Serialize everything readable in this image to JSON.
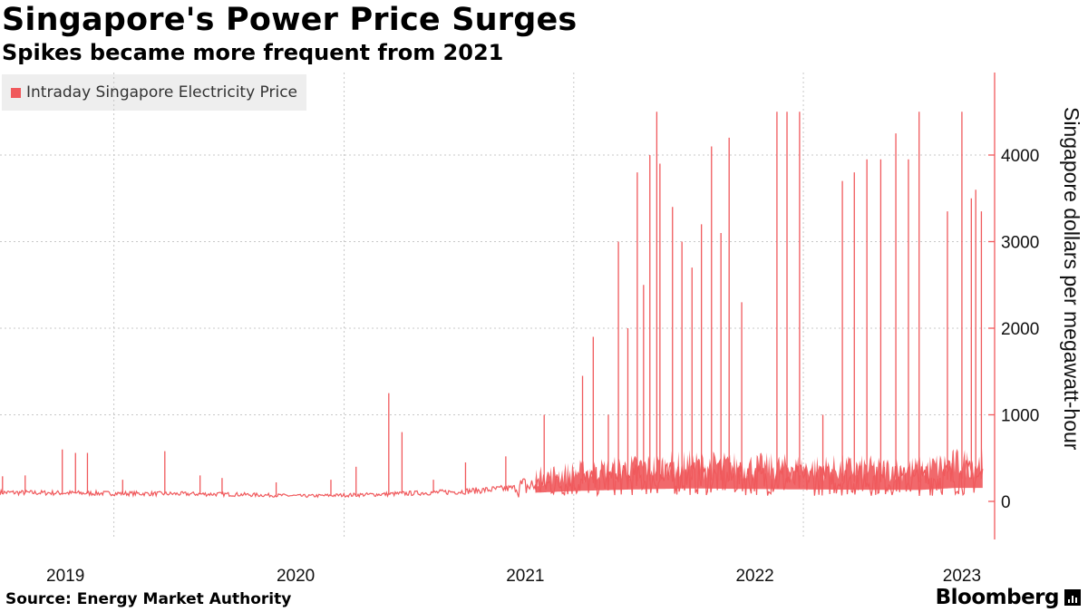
{
  "header": {
    "title": "Singapore's Power Price Surges",
    "subtitle": "Spikes became more frequent from 2021"
  },
  "footer": {
    "source": "Source: Energy Market Authority",
    "brand": "Bloomberg"
  },
  "colors": {
    "series": "#f0595c",
    "axis": "#f0595c",
    "grid": "#c8c8c8",
    "legend_bg": "#eeeeee"
  },
  "chart_data": {
    "type": "area",
    "title": "Singapore's Power Price Surges",
    "subtitle": "Spikes became more frequent from 2021",
    "ylabel": "Singapore dollars per megawatt-hour",
    "xlabel": "",
    "y_axis_side": "right",
    "ylim": [
      0,
      4500
    ],
    "yticks": [
      0,
      1000,
      2000,
      3000,
      4000
    ],
    "xlim": [
      "2019-01-01",
      "2023-05-01"
    ],
    "xticks": [
      "2019",
      "2020",
      "2021",
      "2022",
      "2023"
    ],
    "grid": "dashed",
    "legend_position": "top-left",
    "series": [
      {
        "name": "Intraday Singapore Electricity Price",
        "base_level": [
          {
            "x": "2019-01",
            "y": 100
          },
          {
            "x": "2019-07",
            "y": 90
          },
          {
            "x": "2020-01",
            "y": 80
          },
          {
            "x": "2020-05",
            "y": 60
          },
          {
            "x": "2020-09",
            "y": 80
          },
          {
            "x": "2021-01",
            "y": 110
          },
          {
            "x": "2021-04",
            "y": 150
          },
          {
            "x": "2021-07",
            "y": 200
          },
          {
            "x": "2021-10",
            "y": 230
          },
          {
            "x": "2022-01",
            "y": 250
          },
          {
            "x": "2022-07",
            "y": 230
          },
          {
            "x": "2023-01",
            "y": 220
          },
          {
            "x": "2023-03",
            "y": 260
          }
        ],
        "spikes": [
          {
            "x": "2019-01-05",
            "y": 290
          },
          {
            "x": "2019-02-10",
            "y": 300
          },
          {
            "x": "2019-04-10",
            "y": 600
          },
          {
            "x": "2019-05-01",
            "y": 560
          },
          {
            "x": "2019-05-20",
            "y": 560
          },
          {
            "x": "2019-07-15",
            "y": 250
          },
          {
            "x": "2019-09-20",
            "y": 580
          },
          {
            "x": "2019-11-15",
            "y": 300
          },
          {
            "x": "2019-12-20",
            "y": 270
          },
          {
            "x": "2020-03-15",
            "y": 220
          },
          {
            "x": "2020-06-10",
            "y": 250
          },
          {
            "x": "2020-07-20",
            "y": 400
          },
          {
            "x": "2020-09-10",
            "y": 1250
          },
          {
            "x": "2020-10-01",
            "y": 800
          },
          {
            "x": "2020-11-20",
            "y": 250
          },
          {
            "x": "2021-01-10",
            "y": 450
          },
          {
            "x": "2021-03-15",
            "y": 520
          },
          {
            "x": "2021-05-15",
            "y": 1000
          },
          {
            "x": "2021-07-15",
            "y": 1450
          },
          {
            "x": "2021-08-01",
            "y": 1900
          },
          {
            "x": "2021-08-25",
            "y": 1000
          },
          {
            "x": "2021-09-10",
            "y": 3000
          },
          {
            "x": "2021-09-25",
            "y": 2000
          },
          {
            "x": "2021-10-10",
            "y": 3800
          },
          {
            "x": "2021-10-20",
            "y": 2500
          },
          {
            "x": "2021-10-30",
            "y": 4000
          },
          {
            "x": "2021-11-10",
            "y": 4500
          },
          {
            "x": "2021-11-15",
            "y": 3900
          },
          {
            "x": "2021-12-05",
            "y": 3400
          },
          {
            "x": "2021-12-20",
            "y": 3000
          },
          {
            "x": "2022-01-05",
            "y": 2700
          },
          {
            "x": "2022-01-20",
            "y": 3200
          },
          {
            "x": "2022-02-05",
            "y": 4100
          },
          {
            "x": "2022-02-20",
            "y": 3100
          },
          {
            "x": "2022-03-05",
            "y": 4200
          },
          {
            "x": "2022-03-25",
            "y": 2300
          },
          {
            "x": "2022-05-20",
            "y": 4500
          },
          {
            "x": "2022-06-05",
            "y": 4500
          },
          {
            "x": "2022-06-25",
            "y": 4500
          },
          {
            "x": "2022-08-01",
            "y": 1000
          },
          {
            "x": "2022-09-01",
            "y": 3700
          },
          {
            "x": "2022-09-20",
            "y": 3800
          },
          {
            "x": "2022-10-10",
            "y": 3950
          },
          {
            "x": "2022-11-01",
            "y": 3950
          },
          {
            "x": "2022-11-25",
            "y": 4250
          },
          {
            "x": "2022-12-15",
            "y": 3950
          },
          {
            "x": "2023-01-01",
            "y": 4500
          },
          {
            "x": "2023-02-15",
            "y": 3350
          },
          {
            "x": "2023-03-10",
            "y": 4500
          },
          {
            "x": "2023-03-25",
            "y": 3500
          },
          {
            "x": "2023-04-01",
            "y": 3600
          },
          {
            "x": "2023-04-10",
            "y": 3350
          }
        ]
      }
    ]
  }
}
